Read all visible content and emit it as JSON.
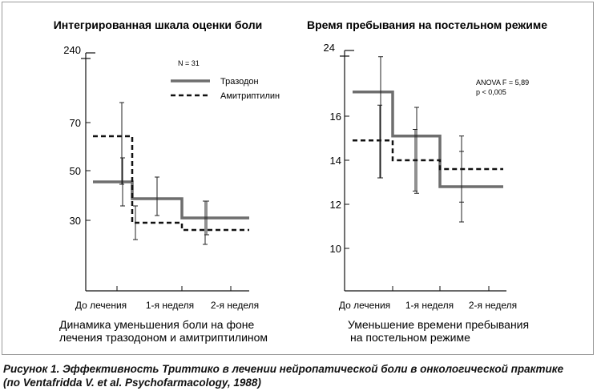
{
  "chart_data": [
    {
      "type": "line",
      "title": "Интегрированная шкала оценки боли",
      "top_label": "240",
      "y_ticks": [
        "70",
        "50",
        "30"
      ],
      "categories": [
        "До лечения",
        "1-я неделя",
        "2-я неделя"
      ],
      "note": "N = 31",
      "series": [
        {
          "name": "Тразодон",
          "values": [
            46,
            39,
            31
          ],
          "error": [
            [
              36,
              56
            ],
            [
              32,
              48
            ],
            [
              24,
              38
            ]
          ],
          "color": "#6e6e6e",
          "dash": "solid"
        },
        {
          "name": "Амитриптилин",
          "values": [
            65,
            29,
            26
          ],
          "error": [
            [
              45,
              79
            ],
            [
              22,
              36
            ],
            [
              20,
              38
            ]
          ],
          "color": "#111111",
          "dash": "dashed"
        }
      ],
      "caption": [
        "Динамика уменьшения боли на фоне",
        "лечения тразодоном и амитриптилином"
      ]
    },
    {
      "type": "line",
      "title": "Время пребывания на постельном режиме",
      "top_label": "24",
      "y_ticks": [
        "16",
        "14",
        "12",
        "10"
      ],
      "categories": [
        "До лечения",
        "1-я неделя",
        "2-я неделя"
      ],
      "note": [
        "ANOVA F = 5,89",
        "p < 0,005"
      ],
      "series": [
        {
          "name": "Тразодон",
          "values": [
            17.1,
            15.1,
            12.8
          ],
          "error": [
            [
              13.2,
              18.7
            ],
            [
              12.5,
              16.4
            ],
            [
              11.2,
              15.1
            ]
          ],
          "color": "#6e6e6e",
          "dash": "solid"
        },
        {
          "name": "Амитриптилин",
          "values": [
            14.9,
            14.0,
            13.6
          ],
          "error": [
            [
              13.2,
              16.5
            ],
            [
              12.6,
              15.4
            ],
            [
              12.1,
              14.4
            ]
          ],
          "color": "#111111",
          "dash": "dashed"
        }
      ],
      "caption": [
        "Уменьшение времени пребывания",
        "на постельном режиме"
      ]
    }
  ],
  "figure_caption": [
    "Рисунок 1. Эффективность Триттико в лечении нейропатической боли в онкологической практике",
    "(по Ventafridda V. et al. Psychofarmacology, 1988)"
  ]
}
